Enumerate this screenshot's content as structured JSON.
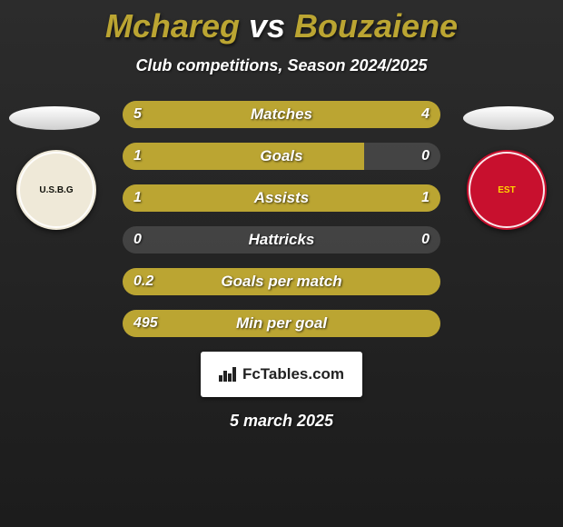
{
  "title_parts": {
    "p1": "Mchareg",
    "vs": "vs",
    "p2": "Bouzaiene"
  },
  "subtitle": "Club competitions, Season 2024/2025",
  "colors": {
    "p1": "#bba532",
    "p2": "#bba532",
    "track": "rgba(122,122,122,0.35)",
    "title_p1": "#bba532",
    "title_vs": "#ffffff",
    "title_p2": "#bba532"
  },
  "badge_left": {
    "bg": "#efe9d8",
    "text": "U.S.B.G",
    "text_color": "#11120c"
  },
  "badge_right": {
    "bg": "#c8102e",
    "text": "EST",
    "text_color": "#ffd400"
  },
  "rows": [
    {
      "label": "Matches",
      "lv": "5",
      "rv": "4",
      "lw": 55.5,
      "rw": 44.5
    },
    {
      "label": "Goals",
      "lv": "1",
      "rv": "0",
      "lw": 76.0,
      "rw": 0.0
    },
    {
      "label": "Assists",
      "lv": "1",
      "rv": "1",
      "lw": 50.0,
      "rw": 50.0
    },
    {
      "label": "Hattricks",
      "lv": "0",
      "rv": "0",
      "lw": 0.0,
      "rw": 0.0
    },
    {
      "label": "Goals per match",
      "lv": "0.2",
      "rv": "",
      "lw": 100.0,
      "rw": 0.0
    },
    {
      "label": "Min per goal",
      "lv": "495",
      "rv": "",
      "lw": 100.0,
      "rw": 0.0
    }
  ],
  "watermark": "FcTables.com",
  "date": "5 march 2025"
}
